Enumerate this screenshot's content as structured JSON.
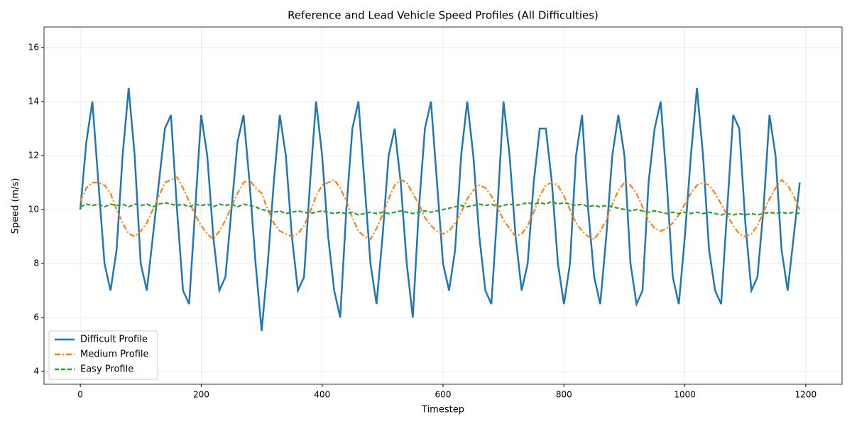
{
  "chart_data": {
    "type": "line",
    "title": "Reference and Lead Vehicle Speed Profiles (All Difficulties)",
    "x_label": "Timestep",
    "y_label": "Speed (m/s)",
    "x": [
      0,
      10,
      20,
      30,
      40,
      50,
      60,
      70,
      80,
      90,
      100,
      110,
      120,
      130,
      140,
      150,
      160,
      170,
      180,
      190,
      200,
      210,
      220,
      230,
      240,
      250,
      260,
      270,
      280,
      290,
      300,
      310,
      320,
      330,
      340,
      350,
      360,
      370,
      380,
      390,
      400,
      410,
      420,
      430,
      440,
      450,
      460,
      470,
      480,
      490,
      500,
      510,
      520,
      530,
      540,
      550,
      560,
      570,
      580,
      590,
      600,
      610,
      620,
      630,
      640,
      650,
      660,
      670,
      680,
      690,
      700,
      710,
      720,
      730,
      740,
      750,
      760,
      770,
      780,
      790,
      800,
      810,
      820,
      830,
      840,
      850,
      860,
      870,
      880,
      890,
      900,
      910,
      920,
      930,
      940,
      950,
      960,
      970,
      980,
      990,
      1000,
      1010,
      1020,
      1030,
      1040,
      1050,
      1060,
      1070,
      1080,
      1090,
      1100,
      1110,
      1120,
      1130,
      1140,
      1150,
      1160,
      1170,
      1180,
      1190
    ],
    "series": [
      {
        "name": "Difficult Profile",
        "color": "#1f77b4",
        "values": [
          10.0,
          12.5,
          14.0,
          11,
          8,
          7,
          8.5,
          12,
          14.5,
          12,
          8,
          7,
          9,
          11,
          13,
          13.5,
          10,
          7,
          6.5,
          10,
          13.5,
          12,
          9,
          7,
          7.5,
          10,
          12.5,
          13.5,
          11,
          8,
          5.5,
          8,
          11,
          13.5,
          12,
          9,
          7,
          7.5,
          11,
          14,
          12,
          9,
          7,
          6,
          10,
          13,
          14,
          11,
          8,
          6.5,
          9,
          12,
          13,
          11,
          8,
          6,
          10,
          13,
          14,
          11,
          8,
          7,
          8.5,
          12,
          14,
          12,
          9,
          7,
          6.5,
          10,
          14,
          12,
          9,
          7,
          8,
          11,
          13,
          13,
          11,
          8,
          6.5,
          8,
          12,
          13.5,
          10,
          7.5,
          6.5,
          9,
          12,
          13.5,
          12,
          8,
          6.5,
          7,
          11,
          13,
          14,
          11,
          7.5,
          6.5,
          9,
          12,
          14.5,
          12,
          8.5,
          7,
          6.5,
          10,
          13.5,
          13,
          9.5,
          7,
          7.5,
          10,
          13.5,
          12,
          8.5,
          7,
          9,
          11
        ]
      },
      {
        "name": "Medium Profile",
        "color": "#ff7f0e",
        "values": [
          10.3,
          10.8,
          11,
          11,
          10.9,
          10.6,
          10,
          9.5,
          9.1,
          9,
          9.2,
          9.5,
          10,
          10.5,
          11,
          11.1,
          11.2,
          10.8,
          10.3,
          9.8,
          9.4,
          9.1,
          8.9,
          9.2,
          9.6,
          10.1,
          10.6,
          11,
          11.1,
          10.8,
          10.6,
          10,
          9.5,
          9.2,
          9.1,
          9,
          9.1,
          9.4,
          9.9,
          10.5,
          10.9,
          11,
          11.1,
          10.8,
          10.3,
          9.7,
          9.2,
          9,
          8.9,
          9.3,
          9.8,
          10.4,
          10.9,
          11.1,
          11,
          10.6,
          10.2,
          9.7,
          9.4,
          9.2,
          9.1,
          9.2,
          9.5,
          9.9,
          10.4,
          10.7,
          10.9,
          10.8,
          10.5,
          10.1,
          9.6,
          9.3,
          9,
          9.1,
          9.4,
          9.9,
          10.5,
          10.9,
          11,
          10.9,
          10.5,
          10,
          9.5,
          9.2,
          9,
          8.9,
          9.2,
          9.6,
          10.2,
          10.7,
          11,
          10.9,
          10.6,
          10.1,
          9.6,
          9.3,
          9.2,
          9.3,
          9.5,
          9.8,
          10.2,
          10.6,
          10.9,
          11,
          10.9,
          10.6,
          10.2,
          9.8,
          9.4,
          9.1,
          9,
          9.1,
          9.4,
          9.9,
          10.4,
          10.8,
          11.1,
          10.9,
          10.5,
          10
        ]
      },
      {
        "name": "Easy Profile",
        "color": "#2ca02c",
        "values": [
          10.1,
          10.2,
          10.15,
          10.2,
          10.1,
          10.2,
          10.15,
          10.2,
          10.1,
          10.2,
          10.15,
          10.2,
          10.1,
          10.2,
          10.25,
          10.2,
          10.15,
          10.2,
          10.1,
          10.2,
          10.15,
          10.2,
          10.1,
          10.2,
          10.15,
          10.2,
          10.1,
          10.2,
          10.15,
          10.1,
          10.0,
          9.95,
          9.9,
          9.95,
          9.85,
          9.9,
          9.95,
          9.9,
          9.85,
          9.9,
          9.95,
          9.9,
          9.85,
          9.9,
          9.85,
          9.9,
          9.8,
          9.85,
          9.9,
          9.85,
          9.9,
          9.85,
          9.9,
          9.95,
          9.9,
          9.85,
          9.9,
          9.95,
          9.9,
          9.95,
          10.0,
          10.05,
          10.1,
          10.15,
          10.1,
          10.15,
          10.2,
          10.15,
          10.2,
          10.1,
          10.15,
          10.2,
          10.15,
          10.2,
          10.25,
          10.2,
          10.25,
          10.2,
          10.3,
          10.2,
          10.25,
          10.2,
          10.15,
          10.2,
          10.1,
          10.15,
          10.1,
          10.15,
          10.1,
          10.05,
          10.0,
          9.95,
          10.0,
          9.95,
          9.9,
          9.95,
          9.9,
          9.85,
          9.9,
          9.85,
          9.9,
          9.85,
          9.9,
          9.85,
          9.9,
          9.85,
          9.8,
          9.85,
          9.8,
          9.85,
          9.8,
          9.85,
          9.8,
          9.85,
          9.9,
          9.85,
          9.9,
          9.85,
          9.9,
          9.85
        ]
      }
    ],
    "xlim": [
      -60,
      1260
    ],
    "ylim": [
      3.53,
      16.76
    ],
    "xticks": [
      0,
      200,
      400,
      600,
      800,
      1000,
      1200
    ],
    "yticks": [
      4,
      6,
      8,
      10,
      12,
      14,
      16
    ],
    "grid": true,
    "legend": "lower left"
  }
}
